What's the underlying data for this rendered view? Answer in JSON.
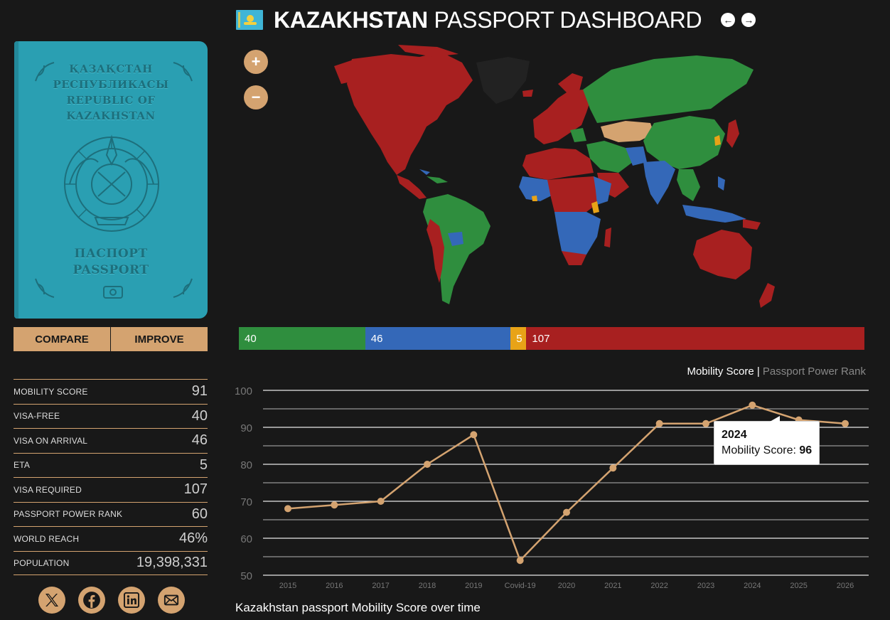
{
  "header": {
    "country": "KAZAKHSTAN",
    "title_rest": "PASSPORT DASHBOARD",
    "prev_icon": "arrow-left-icon",
    "next_icon": "arrow-right-icon"
  },
  "passport": {
    "top_lines": [
      "ҚАЗАҚСТАН",
      "РЕСПУБЛИКАСЫ",
      "REPUBLIC OF",
      "KAZAKHSTAN"
    ],
    "bottom_lines": [
      "ПАСПОРТ",
      "PASSPORT"
    ],
    "cover_color": "#2a9fb2"
  },
  "actions": {
    "compare": "COMPARE",
    "improve": "IMPROVE"
  },
  "stats": [
    {
      "label": "MOBILITY SCORE",
      "value": "91"
    },
    {
      "label": "VISA-FREE",
      "value": "40"
    },
    {
      "label": "VISA ON ARRIVAL",
      "value": "46"
    },
    {
      "label": "ETA",
      "value": "5"
    },
    {
      "label": "VISA REQUIRED",
      "value": "107"
    },
    {
      "label": "PASSPORT POWER RANK",
      "value": "60"
    },
    {
      "label": "WORLD REACH",
      "value": "46%"
    },
    {
      "label": "POPULATION",
      "value": "19,398,331"
    }
  ],
  "social": [
    "x-twitter-icon",
    "facebook-icon",
    "linkedin-icon",
    "email-icon"
  ],
  "zoom": {
    "in": "+",
    "out": "−"
  },
  "distribution": [
    {
      "label": "40",
      "value": 40,
      "color": "#2f8e3e"
    },
    {
      "label": "46",
      "value": 46,
      "color": "#3468b8"
    },
    {
      "label": "5",
      "value": 5,
      "color": "#e8a317"
    },
    {
      "label": "107",
      "value": 107,
      "color": "#a82020"
    }
  ],
  "chart_tabs": {
    "active": "Mobility Score",
    "separator": "|",
    "inactive": "Passport Power Rank"
  },
  "chart_data": {
    "type": "line",
    "categories": [
      "2015",
      "2016",
      "2017",
      "2018",
      "2019",
      "Covid-19",
      "2020",
      "2021",
      "2022",
      "2023",
      "2024",
      "2025",
      "2026"
    ],
    "series": [
      {
        "name": "Mobility Score",
        "values": [
          68,
          69,
          70,
          80,
          88,
          54,
          67,
          79,
          91,
          91,
          96,
          92,
          91
        ]
      }
    ],
    "ylim": [
      50,
      100
    ],
    "yticks": [
      50,
      60,
      70,
      80,
      90,
      100
    ],
    "grid": true,
    "line_color": "#d4a370"
  },
  "tooltip": {
    "year": "2024",
    "label": "Mobility Score: ",
    "score": "96"
  },
  "caption": "Kazakhstan passport Mobility Score over time"
}
